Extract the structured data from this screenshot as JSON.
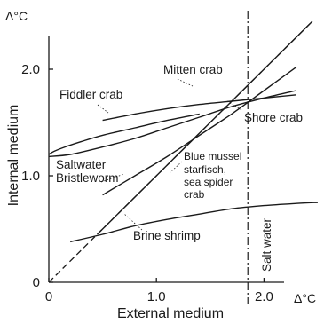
{
  "chart_data": {
    "type": "line",
    "xlabel": "External medium",
    "ylabel": "Internal medium",
    "x_unit": "Δ°C",
    "y_unit": "Δ°C",
    "xlim": [
      0,
      2.5
    ],
    "ylim": [
      0,
      2.5
    ],
    "x_ticks": [
      {
        "value": 0,
        "label": "0"
      },
      {
        "value": 1,
        "label": "1.0"
      },
      {
        "value": 2,
        "label": "2.0"
      }
    ],
    "y_ticks": [
      {
        "value": 0,
        "label": "0"
      },
      {
        "value": 1,
        "label": "1.0"
      },
      {
        "value": 2,
        "label": "2.0"
      }
    ],
    "salt_water": {
      "x": 1.85,
      "label": "Salt water"
    },
    "iso_line": {
      "x": [
        0,
        2.45
      ],
      "y": [
        0,
        2.45
      ]
    },
    "series": [
      {
        "name": "Mitten crab",
        "x": [
          0.5,
          0.8,
          1.1,
          1.4,
          1.7,
          2.0,
          2.3
        ],
        "y": [
          0.82,
          1.0,
          1.18,
          1.38,
          1.58,
          1.8,
          2.02
        ]
      },
      {
        "name": "Fiddler crab",
        "x": [
          0.5,
          0.8,
          1.1,
          1.4,
          1.7,
          2.0,
          2.3
        ],
        "y": [
          1.52,
          1.58,
          1.63,
          1.67,
          1.7,
          1.73,
          1.76
        ]
      },
      {
        "name": "Shore crab",
        "x": [
          0,
          0.2,
          0.5,
          0.8,
          1.1,
          1.4,
          1.7,
          2.0,
          2.3
        ],
        "y": [
          1.18,
          1.2,
          1.27,
          1.35,
          1.45,
          1.55,
          1.65,
          1.73,
          1.8
        ]
      },
      {
        "name": "Saltwater Bristleworm",
        "x": [
          0,
          0.05,
          0.15,
          0.3,
          0.5,
          0.8,
          1.1,
          1.4
        ],
        "y": [
          1.2,
          1.23,
          1.27,
          1.32,
          1.38,
          1.45,
          1.52,
          1.58
        ]
      },
      {
        "name": "Brine shrimp",
        "x": [
          0.2,
          0.5,
          0.8,
          1.1,
          1.4,
          1.7,
          2.0,
          2.3,
          2.5
        ],
        "y": [
          0.38,
          0.45,
          0.53,
          0.59,
          0.64,
          0.69,
          0.72,
          0.74,
          0.75
        ]
      },
      {
        "name": "Blue mussel starfisch, sea spider crab",
        "x": [
          0.45,
          0.8,
          1.2,
          1.6,
          2.0,
          2.45
        ],
        "y": [
          0.45,
          0.8,
          1.2,
          1.6,
          2.0,
          2.45
        ]
      }
    ],
    "annotations": [
      {
        "text": "Mitten crab",
        "series": "Mitten crab"
      },
      {
        "text": "Fiddler crab",
        "series": "Fiddler crab"
      },
      {
        "text": "Shore crab",
        "series": "Shore crab"
      },
      {
        "text": "Saltwater",
        "series": "Saltwater Bristleworm"
      },
      {
        "text": "Bristleworm",
        "series": "Saltwater Bristleworm"
      },
      {
        "text": "Blue mussel",
        "series": "Blue mussel starfisch, sea spider crab"
      },
      {
        "text": "starfisch,",
        "series": "Blue mussel starfisch, sea spider crab"
      },
      {
        "text": "sea spider",
        "series": "Blue mussel starfisch, sea spider crab"
      },
      {
        "text": "crab",
        "series": "Blue mussel starfisch, sea spider crab"
      },
      {
        "text": "Brine shrimp",
        "series": "Brine shrimp"
      }
    ],
    "grid": false,
    "legend": "none"
  }
}
